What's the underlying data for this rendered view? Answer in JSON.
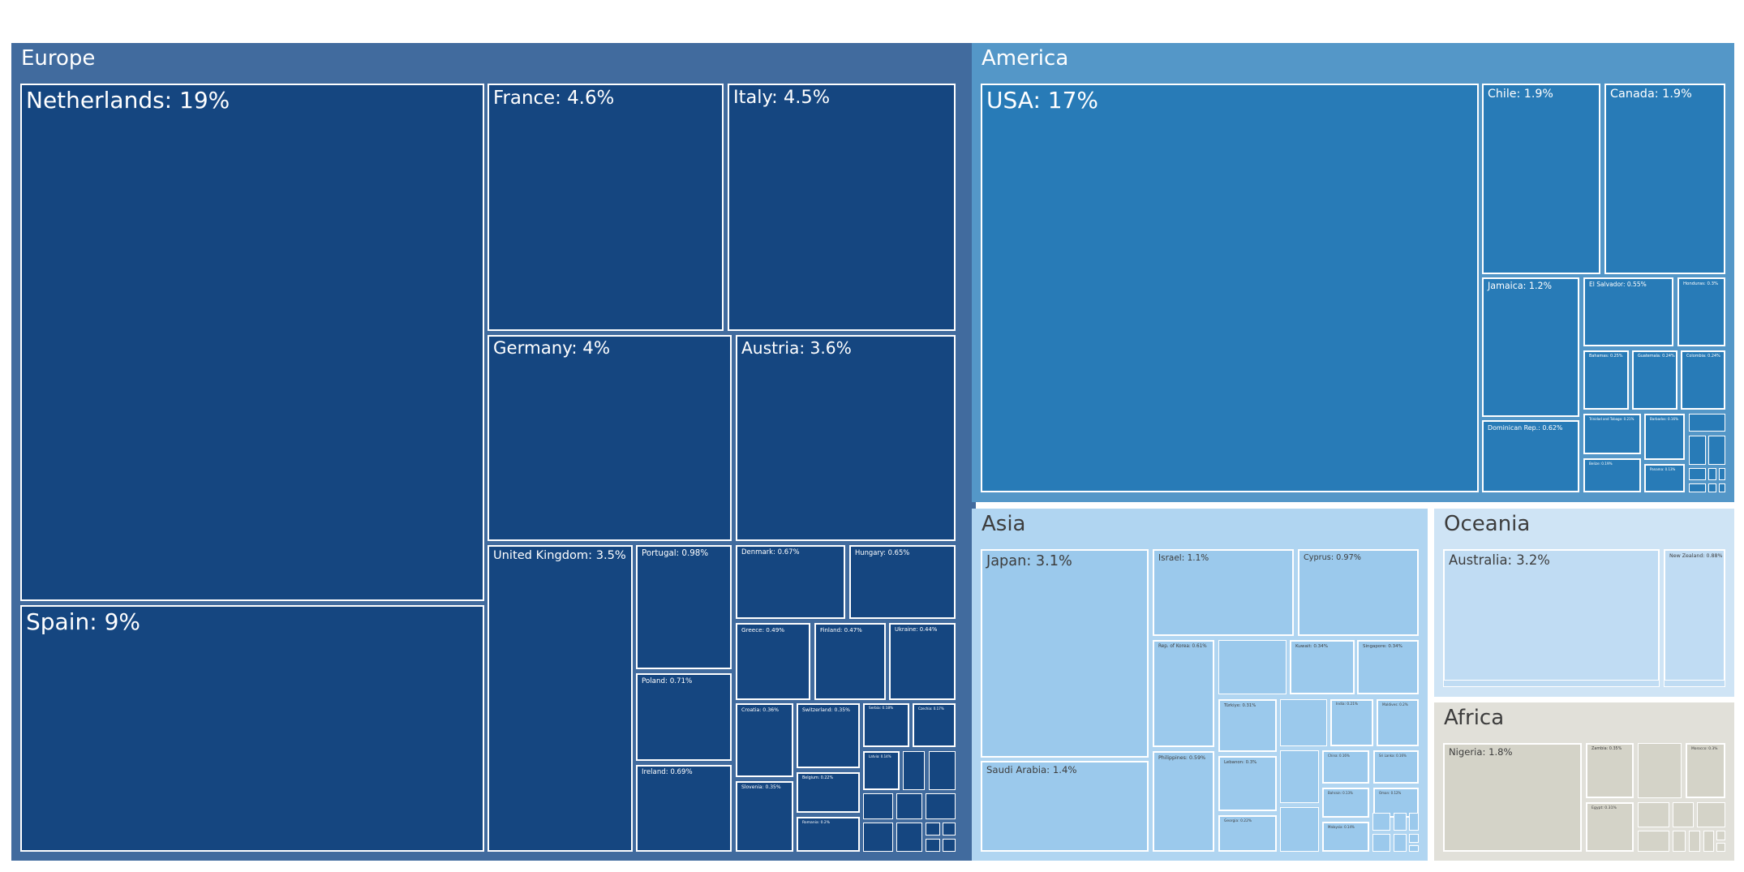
{
  "chart_data": {
    "type": "treemap",
    "title": "",
    "unit": "%",
    "regions": [
      {
        "name": "Europe",
        "color": "#416b9e",
        "cell_color": "#154680",
        "text_color": "#ffffff",
        "children": [
          {
            "name": "Netherlands",
            "value": 19
          },
          {
            "name": "Spain",
            "value": 9
          },
          {
            "name": "France",
            "value": 4.6
          },
          {
            "name": "Italy",
            "value": 4.5
          },
          {
            "name": "Germany",
            "value": 4
          },
          {
            "name": "Austria",
            "value": 3.6
          },
          {
            "name": "United Kingdom",
            "value": 3.5
          },
          {
            "name": "Portugal",
            "value": 0.98
          },
          {
            "name": "Poland",
            "value": 0.71
          },
          {
            "name": "Ireland",
            "value": 0.69
          },
          {
            "name": "Denmark",
            "value": 0.67
          },
          {
            "name": "Hungary",
            "value": 0.65
          },
          {
            "name": "Greece",
            "value": 0.49
          },
          {
            "name": "Finland",
            "value": 0.47
          },
          {
            "name": "Ukraine",
            "value": 0.44
          },
          {
            "name": "Croatia",
            "value": 0.36
          },
          {
            "name": "Switzerland",
            "value": 0.35
          },
          {
            "name": "Slovenia",
            "value": 0.35
          },
          {
            "name": "Belgium",
            "value": 0.22
          },
          {
            "name": "Romania",
            "value": 0.2
          },
          {
            "name": "Serbia",
            "value": 0.18
          },
          {
            "name": "Czechia",
            "value": 0.17
          },
          {
            "name": "Latvia",
            "value": 0.14
          }
        ]
      },
      {
        "name": "America",
        "color": "#5497c8",
        "cell_color": "#287bb7",
        "text_color": "#ffffff",
        "children": [
          {
            "name": "USA",
            "value": 17
          },
          {
            "name": "Chile",
            "value": 1.9
          },
          {
            "name": "Canada",
            "value": 1.9
          },
          {
            "name": "Jamaica",
            "value": 1.2
          },
          {
            "name": "Dominican Rep.",
            "value": 0.62
          },
          {
            "name": "El Salvador",
            "value": 0.55
          },
          {
            "name": "Honduras",
            "value": 0.3
          },
          {
            "name": "Bahamas",
            "value": 0.25
          },
          {
            "name": "Guatemala",
            "value": 0.24
          },
          {
            "name": "Colombia",
            "value": 0.24
          },
          {
            "name": "Trinidad and Tobago",
            "value": 0.21
          },
          {
            "name": "Barbados",
            "value": 0.16
          },
          {
            "name": "Belize",
            "value": 0.19
          },
          {
            "name": "Panama",
            "value": 0.13
          }
        ]
      },
      {
        "name": "Asia",
        "color": "#b0d5f1",
        "cell_color": "#9bc9ec",
        "text_color": "#3d3d3d",
        "children": [
          {
            "name": "Japan",
            "value": 3.1
          },
          {
            "name": "Saudi Arabia",
            "value": 1.4
          },
          {
            "name": "Israel",
            "value": 1.1
          },
          {
            "name": "Cyprus",
            "value": 0.97
          },
          {
            "name": "Rep. of Korea",
            "value": 0.61
          },
          {
            "name": "Philippines",
            "value": 0.59
          },
          {
            "name": "Kuwait",
            "value": 0.34
          },
          {
            "name": "Singapore",
            "value": 0.34
          },
          {
            "name": "Türkiye",
            "value": 0.31
          },
          {
            "name": "Lebanon",
            "value": 0.3
          },
          {
            "name": "India",
            "value": 0.21
          },
          {
            "name": "Maldives",
            "value": 0.2
          },
          {
            "name": "Georgia",
            "value": 0.22
          },
          {
            "name": "China",
            "value": 0.16
          },
          {
            "name": "Sri Lanka",
            "value": 0.16
          },
          {
            "name": "Bahrain",
            "value": 0.13
          },
          {
            "name": "Oman",
            "value": 0.12
          },
          {
            "name": "Malaysia",
            "value": 0.14
          }
        ]
      },
      {
        "name": "Oceania",
        "color": "#cfe4f5",
        "cell_color": "#c0dcf3",
        "text_color": "#3d3d3d",
        "children": [
          {
            "name": "Australia",
            "value": 3.2
          },
          {
            "name": "New Zealand",
            "value": 0.88
          }
        ]
      },
      {
        "name": "Africa",
        "color": "#e1e0d9",
        "cell_color": "#d4d3c8",
        "text_color": "#3d3d3d",
        "children": [
          {
            "name": "Nigeria",
            "value": 1.8
          },
          {
            "name": "Zambia",
            "value": 0.35
          },
          {
            "name": "Egypt",
            "value": 0.31
          },
          {
            "name": "Morocco",
            "value": 0.3
          }
        ]
      }
    ]
  }
}
